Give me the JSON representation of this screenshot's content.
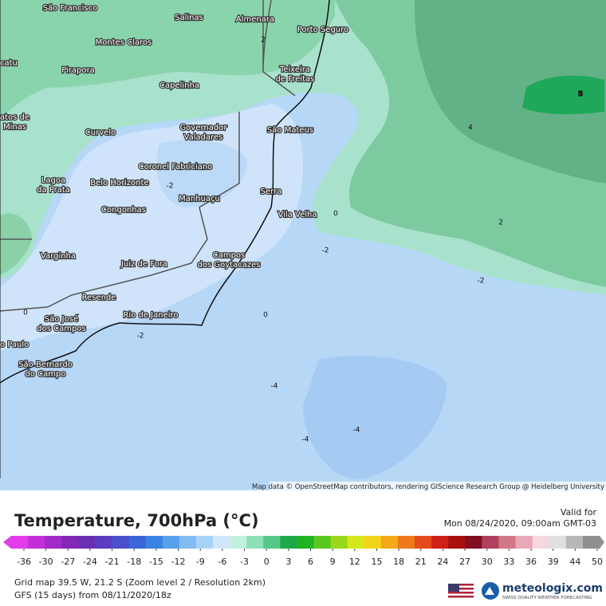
{
  "header": {
    "title": "Temperature, 700hPa (°C)",
    "valid_label": "Valid for",
    "valid_time": "Mon 08/24/2020, 09:00am GMT-03"
  },
  "map": {
    "attribution": "Map data © OpenStreetMap contributors, rendering GIScience Research Group @ Heidelberg University",
    "cities": [
      {
        "lines": [
          "São Francisco"
        ]
      },
      {
        "lines": [
          "Salinas"
        ]
      },
      {
        "lines": [
          "Almenara"
        ]
      },
      {
        "lines": [
          "Porto Seguro"
        ]
      },
      {
        "lines": [
          "Montes Claros"
        ]
      },
      {
        "lines": [
          "catu"
        ]
      },
      {
        "lines": [
          "Pirapora"
        ]
      },
      {
        "lines": [
          "Teixeira",
          "de Freitas"
        ]
      },
      {
        "lines": [
          "Capelinha"
        ]
      },
      {
        "lines": [
          "atos de",
          "Minas"
        ]
      },
      {
        "lines": [
          "Curvelo"
        ]
      },
      {
        "lines": [
          "Governador",
          "Valadares"
        ]
      },
      {
        "lines": [
          "São Mateus"
        ]
      },
      {
        "lines": [
          "Coronel Fabriciano"
        ]
      },
      {
        "lines": [
          "Lagoa",
          "da Prata"
        ]
      },
      {
        "lines": [
          "Belo Horizonte"
        ]
      },
      {
        "lines": [
          "Manhuaçu"
        ]
      },
      {
        "lines": [
          "Serra"
        ]
      },
      {
        "lines": [
          "Vila Velha"
        ]
      },
      {
        "lines": [
          "Congonhas"
        ]
      },
      {
        "lines": [
          "Varginha"
        ]
      },
      {
        "lines": [
          "Juiz de Fora"
        ]
      },
      {
        "lines": [
          "Campos",
          "dos Goytacazes"
        ]
      },
      {
        "lines": [
          "Resende"
        ]
      },
      {
        "lines": [
          "Rio de Janeiro"
        ]
      },
      {
        "lines": [
          "São José",
          "dos Campos"
        ]
      },
      {
        "lines": [
          "o Paulo"
        ]
      },
      {
        "lines": [
          "São Bernardo",
          "do Campo"
        ]
      }
    ],
    "contour_labels": [
      2,
      5,
      4,
      0,
      2,
      -2,
      -2,
      -2,
      0,
      0,
      -2,
      -4,
      -4,
      -4
    ]
  },
  "colorbar": {
    "ticks": [
      -36,
      -30,
      -27,
      -24,
      -21,
      -18,
      -15,
      -12,
      -9,
      -6,
      -3,
      0,
      3,
      6,
      9,
      12,
      15,
      18,
      21,
      24,
      27,
      30,
      33,
      36,
      39,
      44,
      50
    ],
    "colors": [
      "#e23de8",
      "#c22fd8",
      "#a12ac8",
      "#8426b8",
      "#6b2fb6",
      "#5b3dbf",
      "#4a4fcc",
      "#3a66d8",
      "#3a82e0",
      "#5aa0ea",
      "#82bcf2",
      "#a8d3f7",
      "#cfe6fb",
      "#c2f0e0",
      "#8fe0b8",
      "#55c98a",
      "#1ea84a",
      "#22b322",
      "#5ac81e",
      "#9ad81e",
      "#d6e81c",
      "#f2d41a",
      "#f4a81a",
      "#ee7a1a",
      "#e44a1a",
      "#cf2018",
      "#a81010",
      "#801020",
      "#b04060",
      "#d07888",
      "#e8a8b8",
      "#f4d8de",
      "#e0e0e0",
      "#b8b8b8",
      "#909090"
    ]
  },
  "footer": {
    "grid_info": "Grid map 39.5 W, 21.2 S (Zoom level 2 / Resolution 2km)",
    "model": "GFS (15 days) from 08/11/2020/18z",
    "brand": "meteologix.com",
    "tagline": "SWISS QUALITY WEATHER FORECASTING"
  }
}
